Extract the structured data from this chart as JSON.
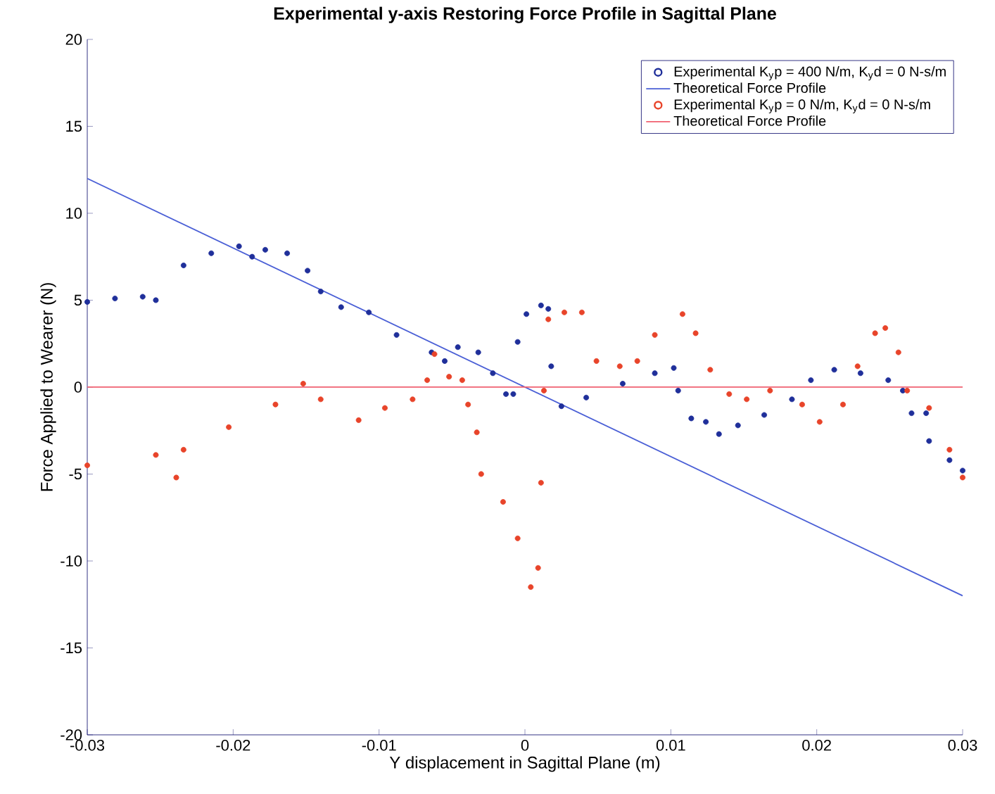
{
  "chart_data": {
    "type": "line",
    "title": "Experimental y-axis Restoring Force Profile in Sagittal Plane",
    "xlabel": "Y displacement in Sagittal Plane (m)",
    "ylabel": "Force Applied to Wearer (N)",
    "xlim": [
      -0.03,
      0.03
    ],
    "ylim": [
      -20,
      20
    ],
    "xticks": [
      -0.03,
      -0.02,
      -0.01,
      0,
      0.01,
      0.02,
      0.03
    ],
    "yticks": [
      -20,
      -15,
      -10,
      -5,
      0,
      5,
      10,
      15,
      20
    ],
    "grid": false,
    "legend": "top right",
    "series": [
      {
        "name": "Experimental K$_{y}$p = 400 N/m, K$_{y}$d = 0 N-s/m",
        "type": "scatter",
        "marker": "circle",
        "color": "#1f2f9a",
        "x": [
          -0.03,
          -0.0281,
          -0.0262,
          -0.0253,
          -0.0234,
          -0.0215,
          -0.0196,
          -0.0187,
          -0.0178,
          -0.0163,
          -0.0149,
          -0.014,
          -0.0126,
          -0.0107,
          -0.0088,
          -0.0064,
          -0.0055,
          -0.0046,
          -0.0032,
          -0.0022,
          -0.0013,
          -0.0008,
          -0.0005,
          0.0001,
          0.0011,
          0.0016,
          0.0018,
          0.0025,
          0.0042,
          0.0067,
          0.0089,
          0.0102,
          0.0105,
          0.0114,
          0.0124,
          0.0133,
          0.0146,
          0.0164,
          0.0183,
          0.0196,
          0.0212,
          0.023,
          0.0249,
          0.0259,
          0.0265,
          0.0275,
          0.0277,
          0.0291,
          0.03
        ],
        "values": [
          4.9,
          5.1,
          5.2,
          5.0,
          7.0,
          7.7,
          8.1,
          7.5,
          7.9,
          7.7,
          6.7,
          5.5,
          4.6,
          4.3,
          3.0,
          2.0,
          1.5,
          2.3,
          2.0,
          0.8,
          -0.4,
          -0.4,
          2.6,
          4.2,
          4.7,
          4.5,
          1.2,
          -1.1,
          -0.6,
          0.2,
          0.8,
          1.1,
          -0.2,
          -1.8,
          -2.0,
          -2.7,
          -2.2,
          -1.6,
          -0.7,
          0.4,
          1.0,
          0.8,
          0.4,
          -0.2,
          -1.5,
          -1.5,
          -3.1,
          -4.2,
          -4.8
        ]
      },
      {
        "name": "Theoretical Force Profile",
        "color": "#4a5fd6",
        "x": [
          -0.03,
          0.03
        ],
        "values": [
          12,
          -12
        ]
      },
      {
        "name": "Experimental K$_{y}$p = 0 N/m, K$_{y}$d = 0 N-s/m",
        "type": "scatter",
        "marker": "circle",
        "color": "#e8442a",
        "x": [
          -0.03,
          -0.0253,
          -0.0239,
          -0.0234,
          -0.0203,
          -0.0171,
          -0.0152,
          -0.014,
          -0.0114,
          -0.0096,
          -0.0077,
          -0.0067,
          -0.0062,
          -0.0052,
          -0.0043,
          -0.0039,
          -0.0033,
          -0.003,
          -0.0015,
          -0.0005,
          0.0004,
          0.0009,
          0.0011,
          0.0013,
          0.0016,
          0.0027,
          0.0039,
          0.0049,
          0.0065,
          0.0077,
          0.0089,
          0.0108,
          0.0117,
          0.0127,
          0.014,
          0.0152,
          0.0168,
          0.019,
          0.0202,
          0.0218,
          0.0228,
          0.024,
          0.0247,
          0.0256,
          0.0262,
          0.0277,
          0.0291,
          0.03
        ],
        "values": [
          -4.5,
          -3.9,
          -5.2,
          -3.6,
          -2.3,
          -1.0,
          0.2,
          -0.7,
          -1.9,
          -1.2,
          -0.7,
          0.4,
          1.9,
          0.6,
          0.4,
          -1.0,
          -2.6,
          -5.0,
          -6.6,
          -8.7,
          -11.5,
          -10.4,
          -5.5,
          -0.2,
          3.9,
          4.3,
          4.3,
          1.5,
          1.2,
          1.5,
          3.0,
          4.2,
          3.1,
          1.0,
          -0.4,
          -0.7,
          -0.2,
          -1.0,
          -2.0,
          -1.0,
          1.2,
          3.1,
          3.4,
          2.0,
          -0.2,
          -1.2,
          -3.6,
          -5.2
        ]
      },
      {
        "name": "Theoretical Force Profile",
        "color": "#f06070",
        "x": [
          -0.03,
          0.03
        ],
        "values": [
          0,
          0
        ]
      }
    ]
  }
}
